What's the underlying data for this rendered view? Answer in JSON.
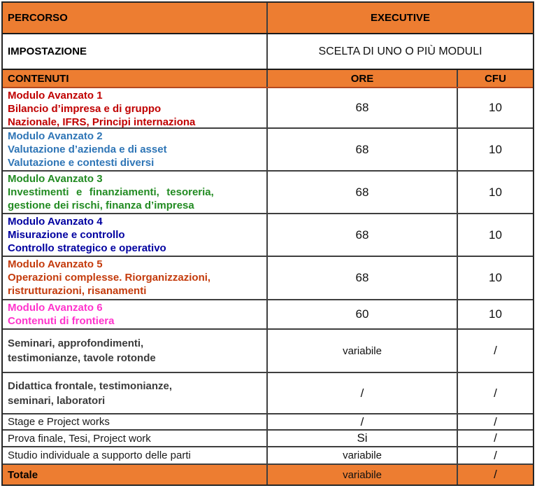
{
  "colors": {
    "accent_orange": "#ED7D31",
    "module1_red": "#C00000",
    "module2_blue": "#2E75B6",
    "module3_green": "#228B22",
    "module4_navy": "#0000A0",
    "module5_brick": "#C43B0C",
    "module6_magenta": "#FF33CC",
    "gray_bold_text": "#3B3B3B"
  },
  "header": {
    "percorso": "PERCORSO",
    "executive": "EXECUTIVE",
    "impostazione": "IMPOSTAZIONE",
    "scelta": "SCELTA DI UNO O PIÙ MODULI",
    "contenuti": "CONTENUTI",
    "ore": "ORE",
    "cfu": "CFU"
  },
  "rows": [
    {
      "lines": [
        "Modulo Avanzato 1",
        "Bilancio d’impresa e di gruppo",
        "Nazionale, IFRS, Principi internaziona"
      ],
      "ore": "68",
      "cfu": "10"
    },
    {
      "lines": [
        "Modulo Avanzato 2",
        "Valutazione d’azienda e di asset",
        "Valutazione e contesti diversi"
      ],
      "ore": "68",
      "cfu": "10"
    },
    {
      "lines": [
        "Modulo Avanzato 3",
        "Investimenti e finanziamenti, tesoreria,",
        "gestione dei rischi, finanza d’impresa"
      ],
      "ore": "68",
      "cfu": "10"
    },
    {
      "lines": [
        "Modulo Avanzato 4",
        "Misurazione e controllo",
        "Controllo strategico e operativo"
      ],
      "ore": "68",
      "cfu": "10"
    },
    {
      "lines": [
        "Modulo Avanzato 5",
        "Operazioni complesse. Riorganizzazioni,",
        "ristrutturazioni, risanamenti"
      ],
      "ore": "68",
      "cfu": "10"
    },
    {
      "lines": [
        "Modulo Avanzato 6",
        "Contenuti di frontiera"
      ],
      "ore": "60",
      "cfu": "10"
    },
    {
      "lines": [
        "Seminari, approfondimenti,",
        "testimonianze, tavole rotonde"
      ],
      "ore": "variabile",
      "cfu": "/"
    },
    {
      "lines": [
        "Didattica frontale, testimonianze,",
        "seminari, laboratori"
      ],
      "ore": "/",
      "cfu": "/"
    },
    {
      "lines": [
        "Stage e Project works"
      ],
      "ore": "/",
      "cfu": "/"
    },
    {
      "lines": [
        "Prova finale, Tesi, Project work"
      ],
      "ore": "Si",
      "cfu": "/"
    },
    {
      "lines": [
        "Studio individuale a supporto delle parti"
      ],
      "ore": "variabile",
      "cfu": "/"
    }
  ],
  "totale": {
    "label": "Totale",
    "ore": "variabile",
    "cfu": "/"
  }
}
